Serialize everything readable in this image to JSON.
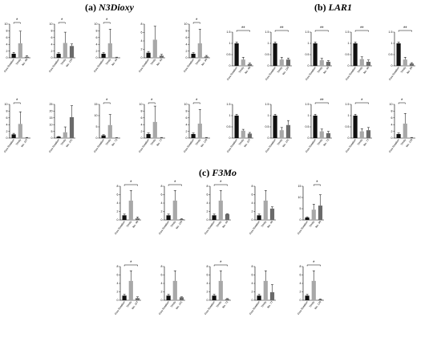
{
  "sections": [
    {
      "id": "a",
      "letter": "(a)",
      "gene": "N3Dioxy"
    },
    {
      "id": "b",
      "letter": "(b)",
      "gene": "LAR1"
    },
    {
      "id": "c",
      "letter": "(c)",
      "gene": "F3Mo"
    }
  ],
  "colors": {
    "bar1": "#111111",
    "bar2": "#a8a8a8",
    "bar3": "#6a6a6a",
    "axis": "#000000"
  },
  "chart_data": [
    {
      "id": "a1",
      "type": "bar",
      "categories": [
        "Free Rotation",
        "Trinity",
        "No. 48"
      ],
      "values": [
        1.2,
        4.3,
        0.3
      ],
      "errors": [
        0.4,
        3.6,
        0.3
      ],
      "ylim": [
        0,
        10
      ],
      "yticks": [
        0,
        2,
        4,
        6,
        8,
        10
      ],
      "sig": "*",
      "sig_pair": [
        0,
        1
      ]
    },
    {
      "id": "a2",
      "type": "bar",
      "categories": [
        "Free Rotation",
        "Trinity",
        "No. 134"
      ],
      "values": [
        1.2,
        4.4,
        3.5
      ],
      "errors": [
        0.3,
        3.2,
        0.6
      ],
      "ylim": [
        0,
        10
      ],
      "yticks": [
        0,
        2,
        4,
        6,
        8,
        10
      ],
      "sig": "*",
      "sig_pair": [
        0,
        1
      ]
    },
    {
      "id": "a3",
      "type": "bar",
      "categories": [
        "Free Rotation",
        "Trinity",
        "No. 44"
      ],
      "values": [
        1.2,
        4.3,
        0.1
      ],
      "errors": [
        0.3,
        4.2,
        0.1
      ],
      "ylim": [
        0,
        10
      ],
      "yticks": [
        0,
        2,
        4,
        6,
        8,
        10
      ],
      "sig": "*",
      "sig_pair": [
        0,
        1
      ]
    },
    {
      "id": "a4",
      "type": "bar",
      "categories": [
        "Free Rotation",
        "Trinity",
        "No. 43"
      ],
      "values": [
        1.2,
        4.3,
        0.5
      ],
      "errors": [
        0.3,
        3.2,
        0.3
      ],
      "ylim": [
        0,
        8
      ],
      "yticks": [
        0,
        2,
        4,
        6,
        8
      ],
      "sig": "",
      "sig_pair": [
        0,
        1
      ]
    },
    {
      "id": "a5",
      "type": "bar",
      "categories": [
        "Free Rotation",
        "Trinity",
        "No. 96"
      ],
      "values": [
        1.2,
        4.3,
        0.4
      ],
      "errors": [
        0.3,
        4.2,
        0.3
      ],
      "ylim": [
        0,
        10
      ],
      "yticks": [
        0,
        2,
        4,
        6,
        8,
        10
      ],
      "sig": "*",
      "sig_pair": [
        0,
        1
      ]
    },
    {
      "id": "a6",
      "type": "bar",
      "categories": [
        "Free Rotation",
        "Trinity",
        "No. 107"
      ],
      "values": [
        1.1,
        4.2,
        0.1
      ],
      "errors": [
        0.3,
        3.6,
        0.1
      ],
      "ylim": [
        0,
        10
      ],
      "yticks": [
        0,
        2,
        4,
        6,
        8,
        10
      ],
      "sig": "*",
      "sig_pair": [
        0,
        1
      ]
    },
    {
      "id": "a7",
      "type": "bar",
      "categories": [
        "Free Rotation",
        "Trinity",
        "No. 141"
      ],
      "values": [
        1.0,
        4.3,
        15.5
      ],
      "errors": [
        0.2,
        4.0,
        8.5
      ],
      "ylim": [
        0,
        25
      ],
      "yticks": [
        0,
        5,
        10,
        15,
        20,
        25
      ],
      "sig": "",
      "sig_pair": [
        0,
        1
      ]
    },
    {
      "id": "a8",
      "type": "bar",
      "categories": [
        "Free Rotation",
        "Trinity",
        "No. 72"
      ],
      "values": [
        1.2,
        5.8,
        0.1
      ],
      "errors": [
        0.3,
        4.7,
        0.1
      ],
      "ylim": [
        0,
        15
      ],
      "yticks": [
        0,
        5,
        10,
        15
      ],
      "sig": "*",
      "sig_pair": [
        0,
        1
      ]
    },
    {
      "id": "a9",
      "type": "bar",
      "categories": [
        "Free Rotation",
        "Trinity",
        "No. 77"
      ],
      "values": [
        1.2,
        4.8,
        0.1
      ],
      "errors": [
        0.3,
        4.7,
        0.1
      ],
      "ylim": [
        0,
        10
      ],
      "yticks": [
        0,
        2,
        4,
        6,
        8,
        10
      ],
      "sig": "*",
      "sig_pair": [
        0,
        1
      ]
    },
    {
      "id": "a10",
      "type": "bar",
      "categories": [
        "Free Rotation",
        "Trinity",
        "No. 126"
      ],
      "values": [
        1.2,
        4.3,
        0.1
      ],
      "errors": [
        0.3,
        4.2,
        0.1
      ],
      "ylim": [
        0,
        10
      ],
      "yticks": [
        0,
        2,
        4,
        6,
        8,
        10
      ],
      "sig": "*",
      "sig_pair": [
        0,
        1
      ]
    },
    {
      "id": "b1",
      "type": "bar",
      "categories": [
        "Free Rotation",
        "Trinity",
        "No. 48"
      ],
      "values": [
        1.0,
        0.28,
        0.08
      ],
      "errors": [
        0.06,
        0.1,
        0.04
      ],
      "ylim": [
        0,
        1.5
      ],
      "yticks": [
        0,
        0.5,
        1.0,
        1.5
      ],
      "sig": "**",
      "sig_pair": [
        0,
        2
      ]
    },
    {
      "id": "b2",
      "type": "bar",
      "categories": [
        "Free Rotation",
        "Trinity",
        "No. 134"
      ],
      "values": [
        1.0,
        0.28,
        0.28
      ],
      "errors": [
        0.06,
        0.1,
        0.06
      ],
      "ylim": [
        0,
        1.5
      ],
      "yticks": [
        0,
        0.5,
        1.0,
        1.5
      ],
      "sig": "**",
      "sig_pair": [
        0,
        2
      ]
    },
    {
      "id": "b3",
      "type": "bar",
      "categories": [
        "Free Rotation",
        "Trinity",
        "No. 44"
      ],
      "values": [
        1.0,
        0.25,
        0.18
      ],
      "errors": [
        0.06,
        0.08,
        0.05
      ],
      "ylim": [
        0,
        1.5
      ],
      "yticks": [
        0,
        0.5,
        1.0,
        1.5
      ],
      "sig": "**",
      "sig_pair": [
        0,
        2
      ]
    },
    {
      "id": "b4",
      "type": "bar",
      "categories": [
        "Free Rotation",
        "Trinity",
        "No. 40"
      ],
      "values": [
        1.0,
        0.3,
        0.18
      ],
      "errors": [
        0.06,
        0.1,
        0.08
      ],
      "ylim": [
        0,
        1.5
      ],
      "yticks": [
        0,
        0.5,
        1.0,
        1.5
      ],
      "sig": "**",
      "sig_pair": [
        0,
        2
      ]
    },
    {
      "id": "b5",
      "type": "bar",
      "categories": [
        "Free Rotation",
        "Trinity",
        "No. 96"
      ],
      "values": [
        1.0,
        0.28,
        0.1
      ],
      "errors": [
        0.06,
        0.1,
        0.04
      ],
      "ylim": [
        0,
        1.5
      ],
      "yticks": [
        0,
        0.5,
        1.0,
        1.5
      ],
      "sig": "**",
      "sig_pair": [
        0,
        2
      ]
    },
    {
      "id": "b6",
      "type": "bar",
      "categories": [
        "Free Rotation",
        "Trinity",
        "No. 107"
      ],
      "values": [
        1.0,
        0.33,
        0.2
      ],
      "errors": [
        0.06,
        0.06,
        0.05
      ],
      "ylim": [
        0,
        1.5
      ],
      "yticks": [
        0,
        0.5,
        1.0,
        1.5
      ],
      "sig": "",
      "sig_pair": [
        0,
        2
      ]
    },
    {
      "id": "b7",
      "type": "bar",
      "categories": [
        "Free Rotation",
        "Trinity",
        "No. 141"
      ],
      "values": [
        1.0,
        0.35,
        0.58
      ],
      "errors": [
        0.06,
        0.12,
        0.2
      ],
      "ylim": [
        0,
        1.5
      ],
      "yticks": [
        0,
        0.5,
        1.0,
        1.5
      ],
      "sig": "",
      "sig_pair": [
        0,
        2
      ]
    },
    {
      "id": "b8",
      "type": "bar",
      "categories": [
        "Free Rotation",
        "Trinity",
        "No. 72"
      ],
      "values": [
        1.0,
        0.3,
        0.22
      ],
      "errors": [
        0.06,
        0.1,
        0.08
      ],
      "ylim": [
        0,
        1.5
      ],
      "yticks": [
        0,
        0.5,
        1.0,
        1.5
      ],
      "sig": "**",
      "sig_pair": [
        0,
        2
      ]
    },
    {
      "id": "b9",
      "type": "bar",
      "categories": [
        "Free Rotation",
        "Trinity",
        "No. 77"
      ],
      "values": [
        1.0,
        0.3,
        0.35
      ],
      "errors": [
        0.06,
        0.12,
        0.12
      ],
      "ylim": [
        0,
        1.5
      ],
      "yticks": [
        0,
        0.5,
        1.0,
        1.5
      ],
      "sig": "*",
      "sig_pair": [
        0,
        2
      ]
    },
    {
      "id": "b10",
      "type": "bar",
      "categories": [
        "Free Rotation",
        "Trinity",
        "No. 126"
      ],
      "values": [
        1.2,
        4.3,
        0.1
      ],
      "errors": [
        0.3,
        3.0,
        0.1
      ],
      "ylim": [
        0,
        10
      ],
      "yticks": [
        0,
        2,
        4,
        6,
        8,
        10
      ],
      "sig": "*",
      "sig_pair": [
        0,
        1
      ]
    },
    {
      "id": "c1",
      "type": "bar",
      "categories": [
        "Free Rotation",
        "Trinity",
        "No. 48"
      ],
      "values": [
        1.1,
        4.6,
        0.4
      ],
      "errors": [
        0.3,
        2.4,
        0.3
      ],
      "ylim": [
        0,
        8
      ],
      "yticks": [
        0,
        2,
        4,
        6,
        8
      ],
      "sig": "*",
      "sig_pair": [
        0,
        2
      ]
    },
    {
      "id": "c2",
      "type": "bar",
      "categories": [
        "Free Rotation",
        "Trinity",
        "No. 134"
      ],
      "values": [
        1.1,
        4.6,
        0.2
      ],
      "errors": [
        0.3,
        2.4,
        0.1
      ],
      "ylim": [
        0,
        8
      ],
      "yticks": [
        0,
        2,
        4,
        6,
        8
      ],
      "sig": "*",
      "sig_pair": [
        0,
        2
      ]
    },
    {
      "id": "c3",
      "type": "bar",
      "categories": [
        "Free Rotation",
        "Trinity",
        "No. 44"
      ],
      "values": [
        1.1,
        4.6,
        1.4
      ],
      "errors": [
        0.3,
        2.4,
        0.1
      ],
      "ylim": [
        0,
        8
      ],
      "yticks": [
        0,
        2,
        4,
        6,
        8
      ],
      "sig": "*",
      "sig_pair": [
        0,
        2
      ]
    },
    {
      "id": "c4",
      "type": "bar",
      "categories": [
        "Free Rotation",
        "Trinity",
        "No. 40"
      ],
      "values": [
        1.1,
        4.6,
        2.7
      ],
      "errors": [
        0.3,
        2.4,
        0.4
      ],
      "ylim": [
        0,
        8
      ],
      "yticks": [
        0,
        2,
        4,
        6,
        8
      ],
      "sig": "",
      "sig_pair": [
        0,
        2
      ]
    },
    {
      "id": "c5",
      "type": "bar",
      "categories": [
        "Free Rotation",
        "Trinity",
        "No. 96"
      ],
      "values": [
        1.1,
        4.6,
        6.4
      ],
      "errors": [
        0.3,
        2.4,
        4.8
      ],
      "ylim": [
        0,
        15
      ],
      "yticks": [
        0,
        5,
        10,
        15
      ],
      "sig": "*",
      "sig_pair": [
        1,
        2
      ]
    },
    {
      "id": "c6",
      "type": "bar",
      "categories": [
        "Free Rotation",
        "Trinity",
        "No. 107"
      ],
      "values": [
        1.1,
        4.6,
        0.5
      ],
      "errors": [
        0.3,
        2.4,
        0.3
      ],
      "ylim": [
        0,
        8
      ],
      "yticks": [
        0,
        2,
        4,
        6,
        8
      ],
      "sig": "*",
      "sig_pair": [
        0,
        2
      ]
    },
    {
      "id": "c7",
      "type": "bar",
      "categories": [
        "Free Rotation",
        "Trinity",
        "No. 141"
      ],
      "values": [
        1.1,
        4.6,
        0.7
      ],
      "errors": [
        0.3,
        2.4,
        0.1
      ],
      "ylim": [
        0,
        8
      ],
      "yticks": [
        0,
        2,
        4,
        6,
        8
      ],
      "sig": "",
      "sig_pair": [
        0,
        2
      ]
    },
    {
      "id": "c8",
      "type": "bar",
      "categories": [
        "Free Rotation",
        "Trinity",
        "No. 72"
      ],
      "values": [
        1.1,
        4.6,
        0.3
      ],
      "errors": [
        0.3,
        2.4,
        0.1
      ],
      "ylim": [
        0,
        8
      ],
      "yticks": [
        0,
        2,
        4,
        6,
        8
      ],
      "sig": "*",
      "sig_pair": [
        0,
        2
      ]
    },
    {
      "id": "c9",
      "type": "bar",
      "categories": [
        "Free Rotation",
        "Trinity",
        "No. 77"
      ],
      "values": [
        1.1,
        4.6,
        1.9
      ],
      "errors": [
        0.3,
        2.4,
        1.8
      ],
      "ylim": [
        0,
        8
      ],
      "yticks": [
        0,
        2,
        4,
        6,
        8
      ],
      "sig": "",
      "sig_pair": [
        0,
        2
      ]
    },
    {
      "id": "c10",
      "type": "bar",
      "categories": [
        "Free Rotation",
        "Trinity",
        "No. 126"
      ],
      "values": [
        1.1,
        4.6,
        0.2
      ],
      "errors": [
        0.3,
        2.4,
        0.1
      ],
      "ylim": [
        0,
        8
      ],
      "yticks": [
        0,
        2,
        4,
        6,
        8
      ],
      "sig": "*",
      "sig_pair": [
        0,
        2
      ]
    }
  ]
}
